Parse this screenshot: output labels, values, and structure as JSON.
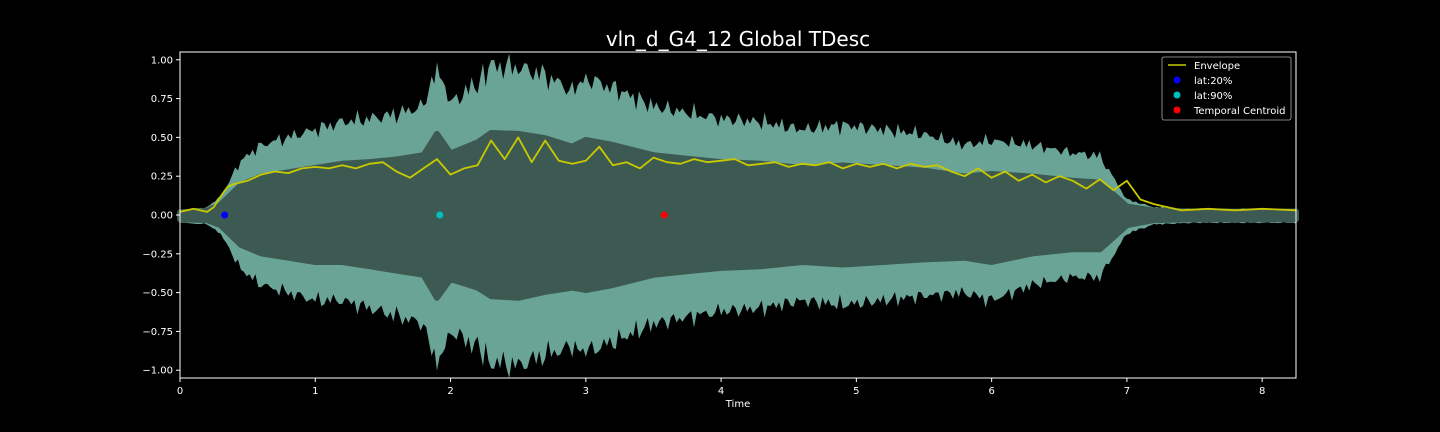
{
  "chart_data": {
    "type": "line",
    "title": "vln_d_G4_12 Global TDesc",
    "xlabel": "Time",
    "ylabel": "",
    "xlim": [
      0,
      8.25
    ],
    "ylim": [
      -1.05,
      1.05
    ],
    "xticks": [
      0,
      1,
      2,
      3,
      4,
      5,
      6,
      7,
      8
    ],
    "yticks": [
      -1.0,
      -0.75,
      -0.5,
      -0.25,
      0.0,
      0.25,
      0.5,
      0.75,
      1.0
    ],
    "xtick_labels": [
      "0",
      "1",
      "2",
      "3",
      "4",
      "5",
      "6",
      "7",
      "8"
    ],
    "ytick_labels": [
      "−1.00",
      "−0.75",
      "−0.50",
      "−0.25",
      "0.00",
      "0.25",
      "0.50",
      "0.75",
      "1.00"
    ],
    "grid": false,
    "legend_position": "top-right",
    "background": "#000000",
    "waveform": {
      "color": "#3d5a52",
      "edge_color": "#6aa496",
      "x": [
        0,
        0.2,
        0.3,
        0.45,
        0.6,
        0.8,
        1.0,
        1.2,
        1.4,
        1.6,
        1.8,
        1.9,
        2.0,
        2.2,
        2.3,
        2.5,
        2.7,
        2.9,
        3.0,
        3.2,
        3.5,
        3.8,
        4.0,
        4.3,
        4.6,
        4.9,
        5.2,
        5.5,
        5.8,
        6.0,
        6.3,
        6.6,
        6.8,
        7.0,
        7.2,
        7.5,
        7.8,
        8.0,
        8.25
      ],
      "max": [
        0.03,
        0.05,
        0.12,
        0.35,
        0.45,
        0.5,
        0.55,
        0.6,
        0.62,
        0.65,
        0.7,
        0.95,
        0.72,
        0.85,
        0.96,
        0.95,
        0.9,
        0.8,
        0.88,
        0.82,
        0.7,
        0.65,
        0.62,
        0.6,
        0.55,
        0.58,
        0.55,
        0.52,
        0.45,
        0.48,
        0.45,
        0.4,
        0.38,
        0.1,
        0.05,
        0.04,
        0.04,
        0.04,
        0.04
      ],
      "min": [
        -0.05,
        -0.06,
        -0.12,
        -0.35,
        -0.45,
        -0.5,
        -0.55,
        -0.55,
        -0.6,
        -0.65,
        -0.7,
        -0.97,
        -0.75,
        -0.85,
        -0.95,
        -0.97,
        -0.9,
        -0.85,
        -0.88,
        -0.82,
        -0.7,
        -0.65,
        -0.62,
        -0.6,
        -0.55,
        -0.58,
        -0.55,
        -0.52,
        -0.5,
        -0.55,
        -0.45,
        -0.4,
        -0.4,
        -0.12,
        -0.06,
        -0.05,
        -0.05,
        -0.05,
        -0.05
      ]
    },
    "series": [
      {
        "name": "Envelope",
        "color": "#c9c900",
        "x": [
          0,
          0.1,
          0.2,
          0.25,
          0.3,
          0.35,
          0.4,
          0.5,
          0.6,
          0.7,
          0.8,
          0.9,
          1.0,
          1.1,
          1.2,
          1.3,
          1.4,
          1.5,
          1.6,
          1.7,
          1.8,
          1.9,
          2.0,
          2.1,
          2.2,
          2.3,
          2.4,
          2.5,
          2.6,
          2.7,
          2.8,
          2.9,
          3.0,
          3.1,
          3.2,
          3.3,
          3.4,
          3.5,
          3.6,
          3.7,
          3.8,
          3.9,
          4.0,
          4.1,
          4.2,
          4.3,
          4.4,
          4.5,
          4.6,
          4.7,
          4.8,
          4.9,
          5.0,
          5.1,
          5.2,
          5.3,
          5.4,
          5.5,
          5.6,
          5.7,
          5.8,
          5.9,
          6.0,
          6.1,
          6.2,
          6.3,
          6.4,
          6.5,
          6.6,
          6.7,
          6.8,
          6.9,
          7.0,
          7.1,
          7.2,
          7.4,
          7.6,
          7.8,
          8.0,
          8.25
        ],
        "y": [
          0.02,
          0.04,
          0.02,
          0.05,
          0.12,
          0.18,
          0.2,
          0.22,
          0.26,
          0.28,
          0.27,
          0.3,
          0.31,
          0.3,
          0.32,
          0.3,
          0.33,
          0.34,
          0.28,
          0.24,
          0.3,
          0.36,
          0.26,
          0.3,
          0.32,
          0.48,
          0.36,
          0.5,
          0.34,
          0.48,
          0.35,
          0.33,
          0.35,
          0.44,
          0.32,
          0.34,
          0.3,
          0.37,
          0.34,
          0.33,
          0.36,
          0.34,
          0.35,
          0.36,
          0.32,
          0.33,
          0.34,
          0.31,
          0.33,
          0.32,
          0.34,
          0.3,
          0.33,
          0.31,
          0.33,
          0.3,
          0.33,
          0.31,
          0.32,
          0.28,
          0.25,
          0.3,
          0.24,
          0.28,
          0.22,
          0.26,
          0.21,
          0.25,
          0.22,
          0.17,
          0.23,
          0.16,
          0.22,
          0.1,
          0.07,
          0.03,
          0.04,
          0.03,
          0.04,
          0.03
        ]
      }
    ],
    "markers": [
      {
        "name": "lat:20%",
        "color": "#0000ff",
        "x": 0.33,
        "y": 0.0
      },
      {
        "name": "lat:90%",
        "color": "#00bfbf",
        "x": 1.92,
        "y": 0.0
      },
      {
        "name": "Temporal Centroid",
        "color": "#ff0000",
        "x": 3.58,
        "y": 0.0
      }
    ],
    "legend": [
      "Envelope",
      "lat:20%",
      "lat:90%",
      "Temporal Centroid"
    ]
  }
}
